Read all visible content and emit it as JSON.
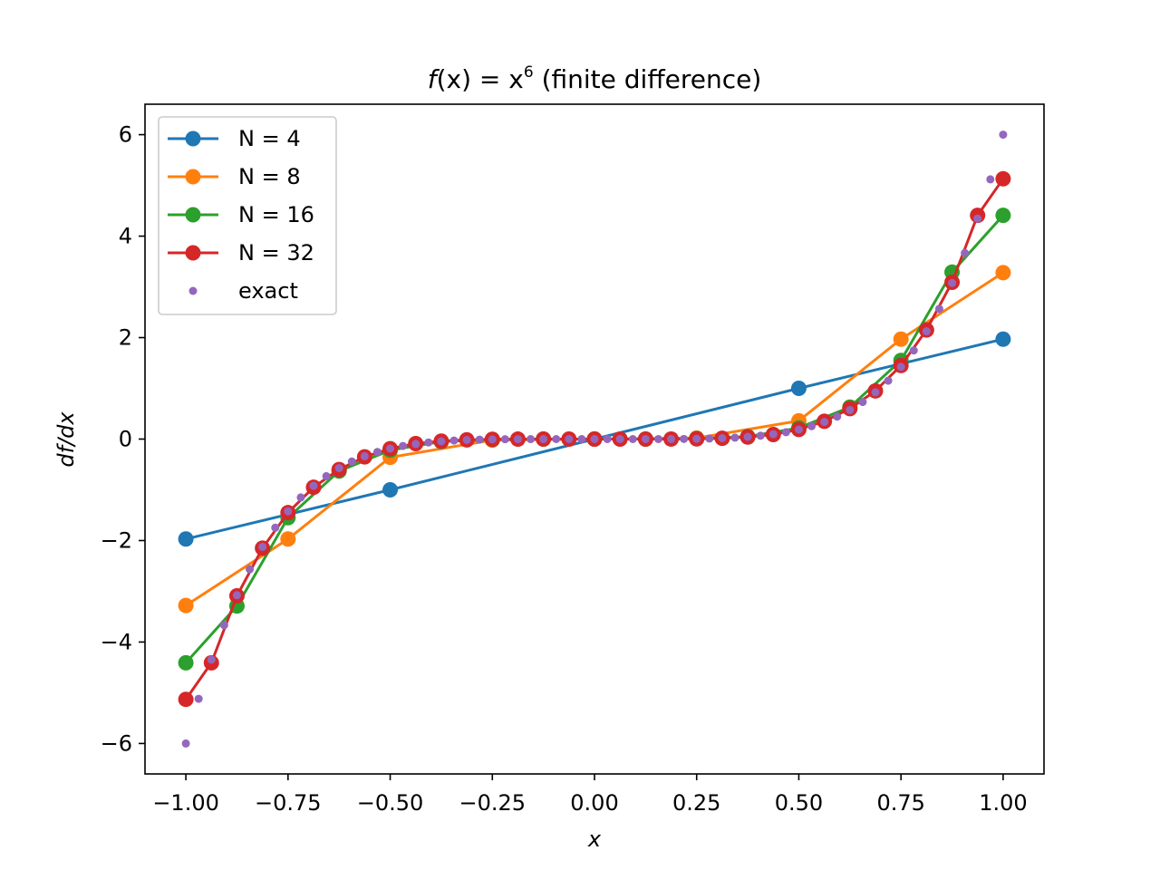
{
  "chart_data": {
    "type": "line",
    "title_parts": {
      "f": "f",
      "paren_x": "(x) = x",
      "exp": "6",
      "suffix": " (finite difference)"
    },
    "xlabel": "x",
    "ylabel": "df/dx",
    "xlim": [
      -1.1,
      1.1
    ],
    "ylim": [
      -6.6,
      6.6
    ],
    "xticks": [
      -1.0,
      -0.75,
      -0.5,
      -0.25,
      0.0,
      0.25,
      0.5,
      0.75,
      1.0
    ],
    "xtick_labels": [
      "−1.00",
      "−0.75",
      "−0.50",
      "−0.25",
      "0.00",
      "0.25",
      "0.50",
      "0.75",
      "1.00"
    ],
    "yticks": [
      -6,
      -4,
      -2,
      0,
      2,
      4,
      6
    ],
    "ytick_labels": [
      "−6",
      "−4",
      "−2",
      "0",
      "2",
      "4",
      "6"
    ],
    "grid": false,
    "legend_position": "upper-left",
    "series": [
      {
        "name": "N = 4",
        "color": "#1f77b4",
        "style": "line-marker",
        "x": [
          -1.0,
          -0.5,
          0.0,
          0.5,
          1.0
        ],
        "y": [
          -1.97,
          -1.0,
          0.0,
          1.0,
          1.97
        ]
      },
      {
        "name": "N = 8",
        "color": "#ff7f0e",
        "style": "line-marker",
        "x": [
          -1.0,
          -0.75,
          -0.5,
          -0.25,
          0.0,
          0.25,
          0.5,
          0.75,
          1.0
        ],
        "y": [
          -3.28,
          -1.97,
          -0.36,
          -0.02,
          0.0,
          0.02,
          0.36,
          1.97,
          3.28
        ]
      },
      {
        "name": "N = 16",
        "color": "#2ca02c",
        "style": "line-marker",
        "x": [
          -1.0,
          -0.875,
          -0.75,
          -0.625,
          -0.5,
          -0.375,
          -0.25,
          -0.125,
          0.0,
          0.125,
          0.25,
          0.375,
          0.5,
          0.625,
          0.75,
          0.875,
          1.0
        ],
        "y": [
          -4.41,
          -3.29,
          -1.55,
          -0.63,
          -0.22,
          -0.05,
          -0.01,
          0.0,
          0.0,
          0.0,
          0.01,
          0.05,
          0.22,
          0.63,
          1.55,
          3.29,
          4.41
        ]
      },
      {
        "name": "N = 32",
        "color": "#d62728",
        "style": "line-marker",
        "x": [
          -1.0,
          -0.9375,
          -0.875,
          -0.8125,
          -0.75,
          -0.6875,
          -0.625,
          -0.5625,
          -0.5,
          -0.4375,
          -0.375,
          -0.3125,
          -0.25,
          -0.1875,
          -0.125,
          -0.0625,
          0.0,
          0.0625,
          0.125,
          0.1875,
          0.25,
          0.3125,
          0.375,
          0.4375,
          0.5,
          0.5625,
          0.625,
          0.6875,
          0.75,
          0.8125,
          0.875,
          0.9375,
          1.0
        ],
        "y": [
          -5.13,
          -4.41,
          -3.09,
          -2.15,
          -1.45,
          -0.95,
          -0.6,
          -0.35,
          -0.19,
          -0.09,
          -0.04,
          -0.015,
          -0.005,
          -0.001,
          0.0,
          0.0,
          0.0,
          0.0,
          0.0,
          0.001,
          0.005,
          0.015,
          0.04,
          0.09,
          0.19,
          0.35,
          0.6,
          0.95,
          1.45,
          2.15,
          3.09,
          4.41,
          5.13
        ]
      },
      {
        "name": "exact",
        "color": "#9467bd",
        "style": "dots",
        "function": "6*x^5",
        "x_range": [
          -1.0,
          1.0
        ],
        "n_points": 65
      }
    ]
  }
}
